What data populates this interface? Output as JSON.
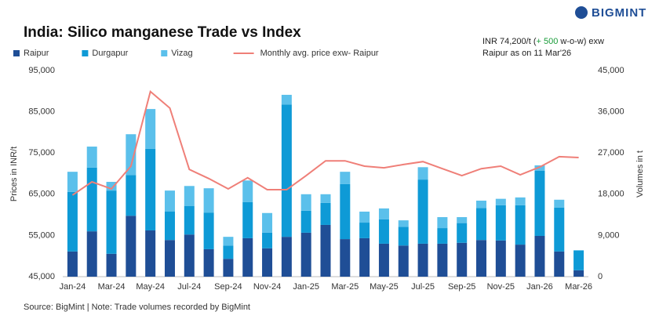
{
  "chart_data": {
    "type": "combo",
    "title": "India: Silico manganese Trade vs Index",
    "brand": "BIGMINT",
    "annotations": [
      "INR 74,200/t (",
      "+ 500",
      " w-o-w) exw",
      "Raipur as on 11 Mar'26"
    ],
    "source": "Source: BigMint | Note: Trade volumes recorded by BigMint",
    "ylabel": "Prices in INR/t",
    "y2label": "Volumes in t",
    "categories": [
      "Jan-24",
      null,
      "Mar-24",
      null,
      "May-24",
      null,
      "Jul-24",
      null,
      "Sep-24",
      null,
      "Nov-24",
      null,
      "Jan-25",
      null,
      "Mar-25",
      null,
      "May-25",
      null,
      "Jul-25",
      null,
      "Sep-25",
      null,
      "Nov-25",
      null,
      "Jan-26",
      null,
      "Mar-26"
    ],
    "series": [
      {
        "name": "Raipur",
        "type": "bar",
        "axis": "y2",
        "color": "#1f4e96",
        "values": [
          5500,
          9900,
          5000,
          13300,
          10100,
          8000,
          9200,
          6000,
          3900,
          8400,
          6200,
          8700,
          9600,
          11300,
          8200,
          8400,
          7200,
          6800,
          7200,
          7200,
          7400,
          8000,
          7900,
          7000,
          8900,
          5500,
          1400
        ]
      },
      {
        "name": "Durgapur",
        "type": "bar",
        "axis": "y2",
        "color": "#0e9ad6",
        "values": [
          13000,
          13900,
          13800,
          8900,
          17800,
          6200,
          6200,
          8000,
          2900,
          7900,
          3400,
          28900,
          4800,
          4800,
          12000,
          3400,
          5300,
          4100,
          14000,
          3400,
          4300,
          7000,
          7700,
          8600,
          14200,
          9600,
          4300
        ]
      },
      {
        "name": "Vizag",
        "type": "bar",
        "axis": "y2",
        "color": "#5bc0eb",
        "values": [
          4400,
          4600,
          1900,
          8900,
          8700,
          4600,
          4400,
          5300,
          1900,
          4700,
          4300,
          2100,
          3600,
          1900,
          2700,
          2400,
          2400,
          1400,
          2700,
          2400,
          1300,
          1600,
          1400,
          1700,
          1200,
          1700,
          100
        ]
      },
      {
        "name": "Monthly avg. price exw- Raipur",
        "type": "line",
        "color": "#ef7f78",
        "values": [
          64800,
          68000,
          66300,
          71800,
          89900,
          85900,
          71000,
          68800,
          66300,
          69000,
          66100,
          66100,
          69500,
          73100,
          73100,
          71800,
          71400,
          72200,
          72900,
          71200,
          69500,
          71200,
          71800,
          69700,
          71600,
          74100,
          73900
        ]
      }
    ],
    "ylim": [
      45000,
      95000
    ],
    "yticks": [
      {
        "value": 45000,
        "label": "45,000"
      },
      {
        "value": 55000,
        "label": "55,000"
      },
      {
        "value": 65000,
        "label": "65,000"
      },
      {
        "value": 75000,
        "label": "75,000"
      },
      {
        "value": 85000,
        "label": "85,000"
      },
      {
        "value": 95000,
        "label": "95,000"
      }
    ],
    "y2lim": [
      0,
      45000
    ],
    "y2ticks": [
      0,
      {
        "value": 9000,
        "label": "9,000"
      },
      {
        "value": 18000,
        "label": "18,000"
      },
      {
        "value": 27000,
        "label": "27,000"
      },
      {
        "value": 36000,
        "label": "36,000"
      },
      {
        "value": 45000,
        "label": "45,000"
      }
    ],
    "grid": false,
    "legend": "top"
  }
}
